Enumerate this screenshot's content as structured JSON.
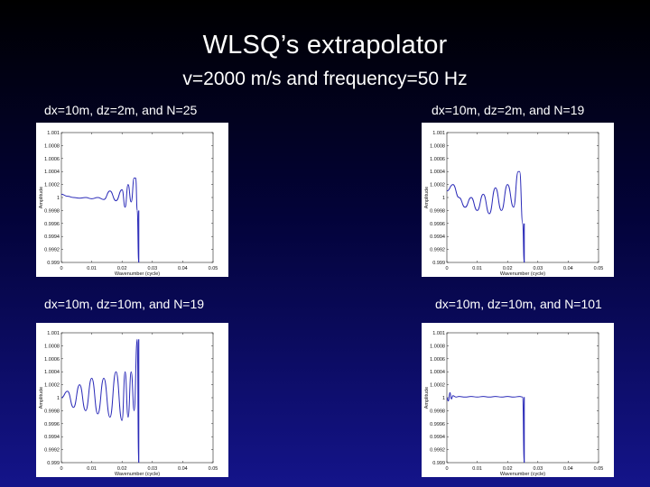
{
  "slide": {
    "title": "WLSQ’s extrapolator",
    "subtitle": "v=2000 m/s and frequency=50 Hz"
  },
  "chart_data": [
    {
      "type": "line",
      "label": "dx=10m, dz=2m, and N=25",
      "xlabel": "Wavenumber (cycle)",
      "ylabel": "Amplitude",
      "xticks": [
        "0",
        "0.01",
        "0.02",
        "0.03",
        "0.04",
        "0.05"
      ],
      "yticks": [
        "1.001",
        "1.0008",
        "1.0006",
        "1.0004",
        "1.0002",
        "1",
        "0.9998",
        "0.9996",
        "0.9994",
        "0.9992",
        "0.999"
      ],
      "xlim": [
        0,
        0.05
      ],
      "ylim": [
        0.999,
        1.001
      ],
      "line_color": "#2a2ab8",
      "cutoff_kx": 0.0255,
      "series": [
        {
          "x": [
            0,
            0.002,
            0.004,
            0.006,
            0.008,
            0.01,
            0.012,
            0.014,
            0.016,
            0.018,
            0.02,
            0.021,
            0.022,
            0.023,
            0.024,
            0.0245,
            0.025,
            0.0255
          ],
          "y": [
            1.00005,
            1.00002,
            1.0,
            0.99999,
            1.0,
            0.99998,
            1.0,
            0.99997,
            1.0001,
            0.99995,
            1.00012,
            0.99985,
            1.0002,
            0.99993,
            1.0003,
            1.0003,
            0.9998,
            0.999
          ]
        }
      ]
    },
    {
      "type": "line",
      "label": "dx=10m, dz=2m, and N=19",
      "xlabel": "Wavenumber (cycle)",
      "ylabel": "Amplitude",
      "xticks": [
        "0",
        "0.01",
        "0.02",
        "0.03",
        "0.04",
        "0.05"
      ],
      "yticks": [
        "1.001",
        "1.0008",
        "1.0006",
        "1.0004",
        "1.0002",
        "1",
        "0.9998",
        "0.9996",
        "0.9994",
        "0.9992",
        "0.999"
      ],
      "xlim": [
        0,
        0.05
      ],
      "ylim": [
        0.999,
        1.001
      ],
      "line_color": "#2a2ab8",
      "cutoff_kx": 0.0255,
      "series": [
        {
          "x": [
            0,
            0.002,
            0.004,
            0.006,
            0.008,
            0.01,
            0.012,
            0.014,
            0.016,
            0.018,
            0.02,
            0.022,
            0.0235,
            0.024,
            0.025,
            0.0255
          ],
          "y": [
            1.0001,
            1.0002,
            1.0,
            0.99985,
            1.0,
            0.9998,
            1.00005,
            0.99975,
            1.00015,
            0.9998,
            1.0002,
            0.99985,
            1.0004,
            1.0004,
            0.9996,
            0.999
          ]
        }
      ]
    },
    {
      "type": "line",
      "label": "dx=10m, dz=10m, and N=19",
      "xlabel": "Wavenumber (cycle)",
      "ylabel": "Amplitude",
      "xticks": [
        "0",
        "0.01",
        "0.02",
        "0.03",
        "0.04",
        "0.05"
      ],
      "yticks": [
        "1.001",
        "1.0008",
        "1.0006",
        "1.0004",
        "1.0002",
        "1",
        "0.9998",
        "0.9996",
        "0.9994",
        "0.9992",
        "0.999"
      ],
      "xlim": [
        0,
        0.05
      ],
      "ylim": [
        0.999,
        1.001
      ],
      "line_color": "#2a2ab8",
      "cutoff_kx": 0.0255,
      "series": [
        {
          "x": [
            0,
            0.002,
            0.004,
            0.006,
            0.008,
            0.01,
            0.012,
            0.014,
            0.016,
            0.018,
            0.02,
            0.021,
            0.022,
            0.023,
            0.024,
            0.025,
            0.0255
          ],
          "y": [
            1.0,
            1.0001,
            0.99985,
            1.0002,
            0.9998,
            1.0003,
            0.99975,
            1.0003,
            0.9997,
            1.0004,
            0.99965,
            1.0004,
            0.9997,
            1.0004,
            0.9998,
            1.0009,
            0.999
          ]
        }
      ]
    },
    {
      "type": "line",
      "label": "dx=10m, dz=10m, and N=101",
      "xlabel": "Wavenumber (cycle)",
      "ylabel": "Amplitude",
      "xticks": [
        "0",
        "0.01",
        "0.02",
        "0.03",
        "0.04",
        "0.05"
      ],
      "yticks": [
        "1.001",
        "1.0008",
        "1.0006",
        "1.0004",
        "1.0002",
        "1",
        "0.9998",
        "0.9996",
        "0.9994",
        "0.9992",
        "0.999"
      ],
      "xlim": [
        0,
        0.05
      ],
      "ylim": [
        0.999,
        1.001
      ],
      "line_color": "#2a2ab8",
      "cutoff_kx": 0.0255,
      "series": [
        {
          "x": [
            0,
            0.0005,
            0.001,
            0.0015,
            0.002,
            0.003,
            0.004,
            0.006,
            0.008,
            0.01,
            0.012,
            0.014,
            0.016,
            0.018,
            0.02,
            0.022,
            0.024,
            0.025,
            0.0255
          ],
          "y": [
            1.0,
            0.99995,
            1.00008,
            0.99998,
            1.00003,
            1.00001,
            1.00002,
            1.00001,
            1.00002,
            1.00001,
            1.00002,
            1.00001,
            1.00002,
            1.00001,
            1.00002,
            1.00001,
            1.00002,
            1.00001,
            0.999
          ]
        }
      ]
    }
  ]
}
